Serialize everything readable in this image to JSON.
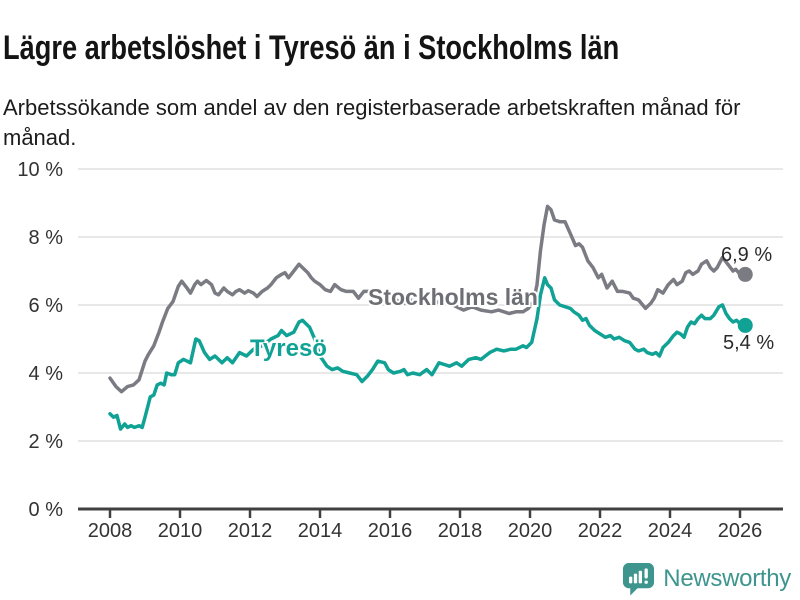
{
  "header": {
    "title": "Lägre arbetslöshet i Tyresö än i Stockholms län",
    "subtitle": "Arbetssökande som andel av den registerbaserade arbetskraften månad för månad."
  },
  "footer": {
    "brand": "Newsworthy",
    "logo_icon": "bar-chart-speech-bubble-icon"
  },
  "colors": {
    "tyreso_line": "#10a295",
    "stockholm_line": "#7b7b83",
    "stockholm_label": "#6e6e75",
    "grid": "#d9d9d9",
    "axis": "#404040",
    "tick_text": "#333333",
    "annotation_text": "#2a2a2a",
    "brand_teal": "#3d958e"
  },
  "chart_data": {
    "type": "line",
    "title": "Lägre arbetslöshet i Tyresö än i Stockholms län",
    "subtitle": "Arbetssökande som andel av den registerbaserade arbetskraften månad för månad.",
    "x_axis": {
      "unit": "year",
      "range": [
        2007.1,
        2027.2
      ],
      "ticks": [
        {
          "value": 2008,
          "label": "2008"
        },
        {
          "value": 2010,
          "label": "2010"
        },
        {
          "value": 2012,
          "label": "2012"
        },
        {
          "value": 2014,
          "label": "2014"
        },
        {
          "value": 2016,
          "label": "2016"
        },
        {
          "value": 2018,
          "label": "2018"
        },
        {
          "value": 2020,
          "label": "2020"
        },
        {
          "value": 2022,
          "label": "2022"
        },
        {
          "value": 2024,
          "label": "2024"
        },
        {
          "value": 2026,
          "label": "2026"
        }
      ]
    },
    "y_axis": {
      "unit": "%",
      "range": [
        0,
        10
      ],
      "grid": true,
      "ticks": [
        {
          "value": 0,
          "label": "0 %"
        },
        {
          "value": 2,
          "label": "2 %"
        },
        {
          "value": 4,
          "label": "4 %"
        },
        {
          "value": 6,
          "label": "6 %"
        },
        {
          "value": 8,
          "label": "8 %"
        },
        {
          "value": 10,
          "label": "10 %"
        }
      ]
    },
    "legend_position": "inline-labels",
    "series": [
      {
        "name": "Stockholms län",
        "inline_label": "Stockholms län",
        "inline_label_color": "#6e6e75",
        "inline_label_pos": {
          "year": 2017.8,
          "value": 6.0
        },
        "end_label": "6,9 %",
        "end_value": 6.9,
        "color": "#7b7b83",
        "points": [
          [
            2008.0,
            3.85
          ],
          [
            2008.17,
            3.6
          ],
          [
            2008.33,
            3.45
          ],
          [
            2008.5,
            3.6
          ],
          [
            2008.67,
            3.65
          ],
          [
            2008.83,
            3.8
          ],
          [
            2009.0,
            4.35
          ],
          [
            2009.1,
            4.55
          ],
          [
            2009.25,
            4.8
          ],
          [
            2009.4,
            5.2
          ],
          [
            2009.5,
            5.5
          ],
          [
            2009.65,
            5.9
          ],
          [
            2009.8,
            6.1
          ],
          [
            2009.95,
            6.55
          ],
          [
            2010.05,
            6.7
          ],
          [
            2010.2,
            6.5
          ],
          [
            2010.3,
            6.35
          ],
          [
            2010.42,
            6.6
          ],
          [
            2010.5,
            6.7
          ],
          [
            2010.6,
            6.6
          ],
          [
            2010.75,
            6.72
          ],
          [
            2010.9,
            6.6
          ],
          [
            2011.0,
            6.35
          ],
          [
            2011.1,
            6.3
          ],
          [
            2011.25,
            6.5
          ],
          [
            2011.35,
            6.4
          ],
          [
            2011.5,
            6.3
          ],
          [
            2011.6,
            6.4
          ],
          [
            2011.7,
            6.45
          ],
          [
            2011.85,
            6.35
          ],
          [
            2011.95,
            6.42
          ],
          [
            2012.1,
            6.35
          ],
          [
            2012.2,
            6.25
          ],
          [
            2012.35,
            6.4
          ],
          [
            2012.5,
            6.5
          ],
          [
            2012.6,
            6.6
          ],
          [
            2012.75,
            6.8
          ],
          [
            2012.9,
            6.9
          ],
          [
            2013.0,
            6.95
          ],
          [
            2013.1,
            6.8
          ],
          [
            2013.25,
            7.0
          ],
          [
            2013.4,
            7.2
          ],
          [
            2013.5,
            7.1
          ],
          [
            2013.65,
            6.95
          ],
          [
            2013.75,
            6.8
          ],
          [
            2013.85,
            6.7
          ],
          [
            2014.0,
            6.6
          ],
          [
            2014.15,
            6.45
          ],
          [
            2014.3,
            6.4
          ],
          [
            2014.42,
            6.6
          ],
          [
            2014.6,
            6.45
          ],
          [
            2014.75,
            6.4
          ],
          [
            2014.95,
            6.4
          ],
          [
            2015.1,
            6.2
          ],
          [
            2015.25,
            6.4
          ],
          [
            2015.5,
            6.4
          ],
          [
            2015.6,
            6.3
          ],
          [
            2015.9,
            6.35
          ],
          [
            2016.1,
            6.2
          ],
          [
            2016.25,
            6.1
          ],
          [
            2016.4,
            6.05
          ],
          [
            2016.65,
            6.15
          ],
          [
            2016.85,
            6.05
          ],
          [
            2017.0,
            6.15
          ],
          [
            2017.2,
            6.0
          ],
          [
            2017.4,
            6.1
          ],
          [
            2017.6,
            6.1
          ],
          [
            2017.8,
            6.0
          ],
          [
            2018.0,
            5.9
          ],
          [
            2018.1,
            5.85
          ],
          [
            2018.35,
            5.95
          ],
          [
            2018.6,
            5.85
          ],
          [
            2018.9,
            5.8
          ],
          [
            2019.1,
            5.85
          ],
          [
            2019.4,
            5.75
          ],
          [
            2019.6,
            5.8
          ],
          [
            2019.8,
            5.8
          ],
          [
            2019.95,
            5.9
          ],
          [
            2020.1,
            6.1
          ],
          [
            2020.2,
            6.6
          ],
          [
            2020.3,
            7.6
          ],
          [
            2020.4,
            8.35
          ],
          [
            2020.5,
            8.9
          ],
          [
            2020.6,
            8.8
          ],
          [
            2020.7,
            8.5
          ],
          [
            2020.85,
            8.45
          ],
          [
            2021.0,
            8.45
          ],
          [
            2021.15,
            8.1
          ],
          [
            2021.3,
            7.75
          ],
          [
            2021.4,
            7.8
          ],
          [
            2021.5,
            7.7
          ],
          [
            2021.65,
            7.3
          ],
          [
            2021.8,
            7.1
          ],
          [
            2021.95,
            6.8
          ],
          [
            2022.05,
            6.9
          ],
          [
            2022.2,
            6.5
          ],
          [
            2022.35,
            6.7
          ],
          [
            2022.5,
            6.4
          ],
          [
            2022.65,
            6.4
          ],
          [
            2022.85,
            6.35
          ],
          [
            2022.95,
            6.2
          ],
          [
            2023.1,
            6.15
          ],
          [
            2023.3,
            5.9
          ],
          [
            2023.45,
            6.05
          ],
          [
            2023.55,
            6.2
          ],
          [
            2023.65,
            6.45
          ],
          [
            2023.8,
            6.35
          ],
          [
            2023.95,
            6.6
          ],
          [
            2024.1,
            6.75
          ],
          [
            2024.2,
            6.6
          ],
          [
            2024.35,
            6.7
          ],
          [
            2024.45,
            6.95
          ],
          [
            2024.55,
            7.0
          ],
          [
            2024.65,
            6.9
          ],
          [
            2024.8,
            7.0
          ],
          [
            2024.9,
            7.2
          ],
          [
            2025.05,
            7.3
          ],
          [
            2025.15,
            7.1
          ],
          [
            2025.25,
            7.0
          ],
          [
            2025.35,
            7.1
          ],
          [
            2025.5,
            7.4
          ],
          [
            2025.65,
            7.2
          ],
          [
            2025.8,
            7.0
          ],
          [
            2025.88,
            7.05
          ],
          [
            2026.0,
            6.9
          ],
          [
            2026.15,
            6.9
          ]
        ]
      },
      {
        "name": "Tyresö",
        "inline_label": "Tyresö",
        "inline_label_color": "#10a295",
        "inline_label_pos": {
          "year": 2013.1,
          "value": 4.5
        },
        "end_label": "5,4 %",
        "end_value": 5.4,
        "color": "#10a295",
        "points": [
          [
            2008.0,
            2.8
          ],
          [
            2008.1,
            2.7
          ],
          [
            2008.2,
            2.75
          ],
          [
            2008.3,
            2.35
          ],
          [
            2008.42,
            2.5
          ],
          [
            2008.5,
            2.4
          ],
          [
            2008.6,
            2.45
          ],
          [
            2008.7,
            2.4
          ],
          [
            2008.83,
            2.45
          ],
          [
            2008.92,
            2.4
          ],
          [
            2009.0,
            2.7
          ],
          [
            2009.15,
            3.3
          ],
          [
            2009.25,
            3.35
          ],
          [
            2009.35,
            3.65
          ],
          [
            2009.45,
            3.7
          ],
          [
            2009.55,
            3.65
          ],
          [
            2009.62,
            4.0
          ],
          [
            2009.75,
            3.95
          ],
          [
            2009.85,
            3.95
          ],
          [
            2009.95,
            4.3
          ],
          [
            2010.1,
            4.4
          ],
          [
            2010.2,
            4.35
          ],
          [
            2010.3,
            4.3
          ],
          [
            2010.45,
            5.0
          ],
          [
            2010.55,
            4.95
          ],
          [
            2010.7,
            4.6
          ],
          [
            2010.85,
            4.4
          ],
          [
            2011.0,
            4.5
          ],
          [
            2011.2,
            4.3
          ],
          [
            2011.35,
            4.45
          ],
          [
            2011.5,
            4.3
          ],
          [
            2011.7,
            4.6
          ],
          [
            2011.9,
            4.5
          ],
          [
            2012.1,
            4.7
          ],
          [
            2012.35,
            4.8
          ],
          [
            2012.6,
            5.0
          ],
          [
            2012.8,
            5.1
          ],
          [
            2012.9,
            5.25
          ],
          [
            2013.05,
            5.1
          ],
          [
            2013.25,
            5.2
          ],
          [
            2013.4,
            5.5
          ],
          [
            2013.5,
            5.55
          ],
          [
            2013.6,
            5.45
          ],
          [
            2013.7,
            5.35
          ],
          [
            2013.85,
            5.0
          ],
          [
            2014.0,
            4.5
          ],
          [
            2014.2,
            4.2
          ],
          [
            2014.35,
            4.1
          ],
          [
            2014.5,
            4.15
          ],
          [
            2014.65,
            4.05
          ],
          [
            2014.85,
            4.0
          ],
          [
            2015.05,
            3.95
          ],
          [
            2015.2,
            3.75
          ],
          [
            2015.35,
            3.9
          ],
          [
            2015.5,
            4.1
          ],
          [
            2015.65,
            4.35
          ],
          [
            2015.85,
            4.3
          ],
          [
            2015.95,
            4.1
          ],
          [
            2016.1,
            4.0
          ],
          [
            2016.3,
            4.05
          ],
          [
            2016.4,
            4.1
          ],
          [
            2016.5,
            3.95
          ],
          [
            2016.65,
            4.0
          ],
          [
            2016.85,
            3.95
          ],
          [
            2017.05,
            4.1
          ],
          [
            2017.2,
            3.95
          ],
          [
            2017.4,
            4.3
          ],
          [
            2017.55,
            4.25
          ],
          [
            2017.7,
            4.2
          ],
          [
            2017.9,
            4.3
          ],
          [
            2018.05,
            4.2
          ],
          [
            2018.25,
            4.4
          ],
          [
            2018.45,
            4.45
          ],
          [
            2018.6,
            4.4
          ],
          [
            2018.85,
            4.6
          ],
          [
            2019.05,
            4.7
          ],
          [
            2019.25,
            4.65
          ],
          [
            2019.45,
            4.7
          ],
          [
            2019.6,
            4.7
          ],
          [
            2019.8,
            4.8
          ],
          [
            2019.9,
            4.75
          ],
          [
            2020.05,
            4.9
          ],
          [
            2020.2,
            5.6
          ],
          [
            2020.3,
            6.3
          ],
          [
            2020.42,
            6.8
          ],
          [
            2020.5,
            6.6
          ],
          [
            2020.6,
            6.5
          ],
          [
            2020.7,
            6.15
          ],
          [
            2020.85,
            6.0
          ],
          [
            2021.0,
            5.95
          ],
          [
            2021.15,
            5.9
          ],
          [
            2021.25,
            5.8
          ],
          [
            2021.4,
            5.7
          ],
          [
            2021.5,
            5.55
          ],
          [
            2021.6,
            5.6
          ],
          [
            2021.7,
            5.4
          ],
          [
            2021.85,
            5.25
          ],
          [
            2022.0,
            5.15
          ],
          [
            2022.15,
            5.05
          ],
          [
            2022.3,
            5.1
          ],
          [
            2022.4,
            5.0
          ],
          [
            2022.55,
            5.05
          ],
          [
            2022.7,
            4.95
          ],
          [
            2022.85,
            4.9
          ],
          [
            2023.0,
            4.7
          ],
          [
            2023.1,
            4.65
          ],
          [
            2023.25,
            4.7
          ],
          [
            2023.35,
            4.6
          ],
          [
            2023.5,
            4.55
          ],
          [
            2023.6,
            4.6
          ],
          [
            2023.7,
            4.5
          ],
          [
            2023.8,
            4.75
          ],
          [
            2023.95,
            4.9
          ],
          [
            2024.1,
            5.1
          ],
          [
            2024.2,
            5.2
          ],
          [
            2024.3,
            5.15
          ],
          [
            2024.4,
            5.05
          ],
          [
            2024.5,
            5.35
          ],
          [
            2024.6,
            5.5
          ],
          [
            2024.7,
            5.45
          ],
          [
            2024.8,
            5.6
          ],
          [
            2024.9,
            5.7
          ],
          [
            2025.0,
            5.6
          ],
          [
            2025.15,
            5.6
          ],
          [
            2025.25,
            5.7
          ],
          [
            2025.4,
            5.95
          ],
          [
            2025.5,
            6.0
          ],
          [
            2025.6,
            5.75
          ],
          [
            2025.7,
            5.6
          ],
          [
            2025.8,
            5.5
          ],
          [
            2025.9,
            5.55
          ],
          [
            2026.0,
            5.45
          ],
          [
            2026.15,
            5.4
          ]
        ]
      }
    ]
  }
}
